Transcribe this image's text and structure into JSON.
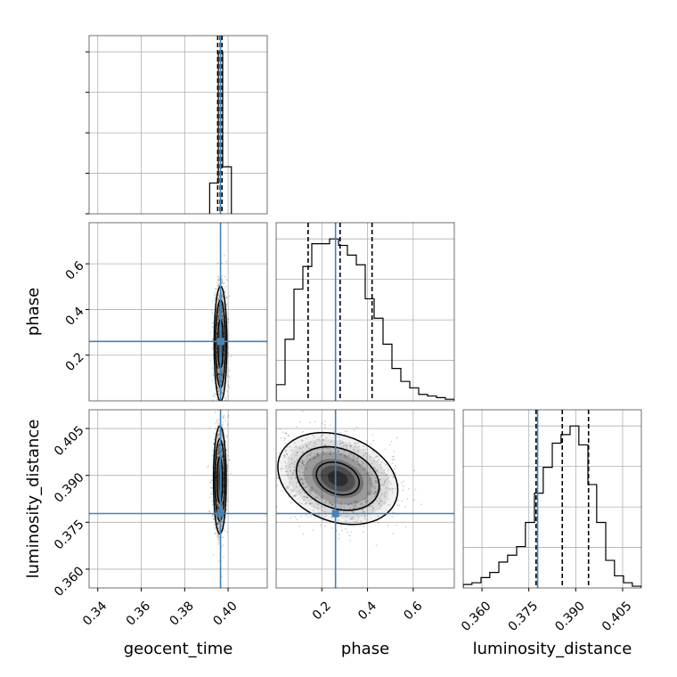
{
  "chart_data": {
    "type": "corner",
    "parameters": [
      "geocent_time",
      "phase",
      "luminosity_distance"
    ],
    "axis_labels": {
      "geocent_time": "geocent_time",
      "phase": "phase",
      "luminosity_distance": "luminosity_distance"
    },
    "ranges": {
      "geocent_time": [
        0.336,
        0.418
      ],
      "phase": [
        0.0,
        0.78
      ],
      "luminosity_distance": [
        0.354,
        0.411
      ]
    },
    "ticks": {
      "geocent_time": [
        {
          "v": 0.34,
          "label": "0.34"
        },
        {
          "v": 0.36,
          "label": "0.36"
        },
        {
          "v": 0.38,
          "label": "0.38"
        },
        {
          "v": 0.4,
          "label": "0.40"
        }
      ],
      "phase": [
        {
          "v": 0.2,
          "label": "0.2"
        },
        {
          "v": 0.4,
          "label": "0.4"
        },
        {
          "v": 0.6,
          "label": "0.6"
        }
      ],
      "luminosity_distance": [
        {
          "v": 0.36,
          "label": "0.360"
        },
        {
          "v": 0.375,
          "label": "0.375"
        },
        {
          "v": 0.39,
          "label": "0.390"
        },
        {
          "v": 0.405,
          "label": "0.405"
        }
      ]
    },
    "injection": {
      "geocent_time": 0.3965,
      "phase": 0.26,
      "luminosity_distance": 0.3778
    },
    "quantiles": {
      "geocent_time": [
        0.3952,
        0.3963,
        0.3972
      ],
      "phase": [
        0.14,
        0.28,
        0.42
      ],
      "luminosity_distance": [
        0.3773,
        0.3857,
        0.3941
      ]
    },
    "histograms": {
      "geocent_time": {
        "edges": [
          0.3915,
          0.3955,
          0.3975,
          0.4015
        ],
        "counts": [
          0.19,
          1.0,
          0.29
        ]
      },
      "phase": {
        "edges": [
          0.0,
          0.039,
          0.078,
          0.117,
          0.156,
          0.195,
          0.234,
          0.273,
          0.312,
          0.351,
          0.39,
          0.429,
          0.468,
          0.507,
          0.546,
          0.585,
          0.624,
          0.663,
          0.702,
          0.741,
          0.78
        ],
        "counts": [
          0.1,
          0.38,
          0.69,
          0.83,
          0.97,
          0.97,
          1.0,
          0.96,
          0.9,
          0.84,
          0.63,
          0.51,
          0.35,
          0.2,
          0.12,
          0.08,
          0.04,
          0.03,
          0.02,
          0.01
        ]
      },
      "luminosity_distance": {
        "edges": [
          0.354,
          0.3568,
          0.3597,
          0.3625,
          0.3654,
          0.3682,
          0.3711,
          0.3739,
          0.3768,
          0.3796,
          0.3825,
          0.3853,
          0.3882,
          0.391,
          0.3939,
          0.3967,
          0.3996,
          0.4024,
          0.4053,
          0.4081,
          0.411
        ],
        "counts": [
          0.02,
          0.03,
          0.06,
          0.09,
          0.15,
          0.19,
          0.24,
          0.38,
          0.55,
          0.7,
          0.84,
          0.89,
          0.94,
          0.83,
          0.6,
          0.38,
          0.16,
          0.07,
          0.03,
          0.01
        ]
      }
    },
    "pairs": [
      {
        "x": "geocent_time",
        "y": "phase",
        "center": [
          0.3965,
          0.25
        ],
        "sigma": [
          0.0014,
          0.12
        ],
        "rho": 0.0,
        "contours": [
          0.9,
          1.6,
          2.1
        ]
      },
      {
        "x": "geocent_time",
        "y": "luminosity_distance",
        "center": [
          0.3962,
          0.3885
        ],
        "sigma": [
          0.0014,
          0.0082
        ],
        "rho": 0.0,
        "contours": [
          0.9,
          1.6,
          2.1
        ]
      },
      {
        "x": "phase",
        "y": "luminosity_distance",
        "center": [
          0.27,
          0.389
        ],
        "sigma": [
          0.125,
          0.007
        ],
        "rho": -0.25,
        "contours": [
          0.75,
          1.45,
          2.1
        ]
      }
    ]
  }
}
